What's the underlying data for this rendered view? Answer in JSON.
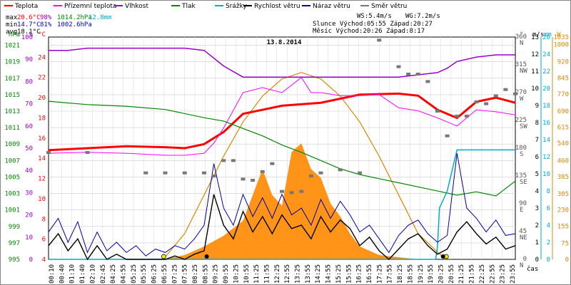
{
  "chart_data": {
    "type": "line",
    "title": "13.8.2014",
    "xlabel": "čas",
    "x_ticks": [
      "00:10",
      "00:40",
      "01:10",
      "01:40",
      "02:10",
      "02:45",
      "04:25",
      "04:55",
      "05:25",
      "05:55",
      "06:25",
      "06:55",
      "07:25",
      "07:55",
      "08:25",
      "08:55",
      "09:25",
      "09:55",
      "10:25",
      "10:55",
      "11:25",
      "11:55",
      "12:25",
      "12:55",
      "13:25",
      "13:55",
      "14:25",
      "14:55",
      "15:25",
      "15:55",
      "16:25",
      "16:55",
      "17:25",
      "17:55",
      "18:25",
      "18:55",
      "19:25",
      "19:55",
      "20:25",
      "20:55",
      "21:25",
      "21:55",
      "22:25",
      "22:55",
      "23:25",
      "23:55"
    ],
    "axes": {
      "hpa": {
        "label": "hPa",
        "ticks": [
          "995",
          "997",
          "999",
          "1001",
          "1003",
          "1005",
          "1007",
          "1009",
          "1011",
          "1013",
          "1015",
          "1017",
          "1019",
          "1021"
        ],
        "range": [
          995,
          1022
        ]
      },
      "pct": {
        "label": "%",
        "ticks": [
          "0",
          "10",
          "20",
          "30",
          "40",
          "50",
          "60",
          "70",
          "80",
          "90",
          "100"
        ],
        "range": [
          0,
          100
        ]
      },
      "temp": {
        "label": "°C",
        "ticks": [
          "4",
          "6",
          "8",
          "10",
          "12",
          "14",
          "16",
          "18",
          "20",
          "22",
          "24"
        ],
        "range": [
          4,
          26
        ]
      },
      "dir": {
        "label": "°",
        "ticks": [
          "0 N",
          "45 NE",
          "90 E",
          "135 SE",
          "180 S",
          "225 SW",
          "270 W",
          "315 NW",
          "360 N"
        ],
        "range": [
          0,
          360
        ]
      },
      "ms": {
        "label": "m/s",
        "ticks": [
          "0",
          "1",
          "2",
          "3",
          "4",
          "5",
          "6",
          "7",
          "8",
          "9",
          "10",
          "11",
          "12",
          "13"
        ],
        "range": [
          0,
          13
        ]
      },
      "mm": {
        "label": "mm",
        "ticks": [
          "0",
          "2",
          "4",
          "6",
          "8",
          "10",
          "12",
          "14",
          "16",
          "18",
          "20",
          "22",
          "24",
          "26"
        ],
        "range": [
          0,
          26
        ]
      },
      "wm2": {
        "label": "W",
        "ticks": [
          "0",
          "75",
          "155",
          "230",
          "305",
          "385",
          "460",
          "540",
          "615",
          "690",
          "770",
          "845",
          "920",
          "1000",
          "1035"
        ],
        "range": [
          0,
          1035
        ]
      }
    },
    "legend": [
      {
        "name": "Teplota",
        "color": "#ff0000"
      },
      {
        "name": "Přízemní teplota",
        "color": "#ff00ff"
      },
      {
        "name": "Vlhkost",
        "color": "#9900cc"
      },
      {
        "name": "Tlak",
        "color": "#008800"
      },
      {
        "name": "Srážky",
        "color": "#00aacc"
      },
      {
        "name": "Rychlost větru",
        "color": "#000000"
      },
      {
        "name": "Náraz větru",
        "color": "#0000aa"
      },
      {
        "name": "Směr větru",
        "color": "#777777"
      }
    ],
    "stats": {
      "max_label": "max",
      "max_temp": "20.6°C",
      "max_hum": "98%",
      "max_press": "1014.2hPa",
      "rain": "12.8mm",
      "min_label": "min",
      "min_temp": "14.7°C",
      "min_hum": "81%",
      "min_press": "1002.6hPa",
      "avg_label": "avg",
      "avg_temp": "18.1°C",
      "ws": "WS:5.4m/s",
      "wg": "WG:7.2m/s",
      "sun": "Slunce Východ:05:55  Západ:20:27",
      "moon": "Měsíc  Východ:20:26  Západ:8:17"
    },
    "series": [
      {
        "name": "Teplota",
        "color": "#ff0000",
        "x": [
          0,
          2,
          4,
          6,
          7,
          8,
          9,
          10,
          12,
          14,
          16,
          18,
          19,
          20,
          21,
          22,
          23,
          24
        ],
        "y": [
          14.8,
          15.0,
          15.2,
          15.1,
          15.0,
          15.4,
          16.6,
          18.4,
          19.2,
          19.5,
          20.3,
          20.4,
          20.2,
          18.8,
          18.0,
          19.6,
          20.0,
          19.5
        ]
      },
      {
        "name": "Přízemní teplota",
        "color": "#ff00ff",
        "x": [
          0,
          2,
          4,
          6,
          7,
          8,
          8.5,
          9,
          10,
          11,
          12,
          13,
          13.5,
          14,
          15,
          16,
          17,
          18,
          19,
          20,
          21,
          22,
          23,
          24
        ],
        "y": [
          14.5,
          14.6,
          14.5,
          14.3,
          14.3,
          14.5,
          15.5,
          17.0,
          20.5,
          21.0,
          20.5,
          22.0,
          20.5,
          20.5,
          20.2,
          20.2,
          20.3,
          19.0,
          18.7,
          18.0,
          17.2,
          18.8,
          18.6,
          18.3
        ]
      },
      {
        "name": "Vlhkost",
        "color": "#9900cc",
        "x": [
          0,
          1,
          2,
          3,
          4,
          6,
          7,
          8,
          9,
          10,
          11,
          12,
          14,
          16,
          17,
          18,
          19,
          20,
          20.5,
          21,
          22,
          23,
          24
        ],
        "y": [
          94,
          94,
          95,
          95,
          95,
          95,
          95,
          94,
          87,
          82,
          82,
          82,
          82,
          82,
          82,
          82,
          83,
          84,
          86,
          89,
          91,
          92,
          92
        ]
      },
      {
        "name": "Tlak",
        "color": "#008800",
        "x": [
          0,
          2,
          4,
          6,
          8,
          9,
          10,
          11,
          12,
          13,
          14,
          15,
          16,
          17,
          18,
          19,
          20,
          21,
          22,
          23,
          24
        ],
        "y": [
          1014.2,
          1013.8,
          1013.6,
          1013.2,
          1012.2,
          1011.8,
          1010.9,
          1010.0,
          1008.9,
          1008.0,
          1007.0,
          1006.0,
          1005.3,
          1004.8,
          1004.3,
          1003.8,
          1003.3,
          1002.8,
          1003.2,
          1002.7,
          1004.5
        ]
      },
      {
        "name": "Srážky",
        "color": "#00aacc",
        "x": [
          0,
          18,
          19.9,
          20.0,
          20.1,
          20.5,
          21,
          22,
          24
        ],
        "y": [
          0,
          0,
          0,
          1.5,
          6.0,
          8.0,
          12.8,
          12.8,
          12.8
        ]
      },
      {
        "name": "Rychlost větru",
        "color": "#000000",
        "x": [
          0,
          0.5,
          1,
          1.5,
          2,
          2.5,
          3,
          3.5,
          4,
          4.5,
          5,
          5.5,
          6,
          6.5,
          7,
          7.5,
          8,
          8.5,
          9,
          9.5,
          10,
          10.5,
          11,
          11.5,
          12,
          12.5,
          13,
          13.5,
          14,
          14.5,
          15,
          15.5,
          16,
          16.5,
          17,
          17.5,
          18,
          18.5,
          19,
          19.5,
          20,
          20.5,
          21,
          21.5,
          22,
          22.5,
          23,
          23.5,
          24
        ],
        "y": [
          0.8,
          1.5,
          0.5,
          1.2,
          0,
          0.8,
          0,
          0.3,
          0,
          0,
          0,
          0,
          0,
          0.2,
          0,
          0.3,
          0.5,
          3.8,
          2.0,
          1.2,
          2.8,
          1.6,
          2.5,
          1.5,
          2.6,
          1.8,
          2.0,
          1.2,
          2.5,
          1.6,
          2.3,
          1.8,
          0.8,
          1.3,
          0.5,
          0,
          0.6,
          1.2,
          1.5,
          0.8,
          0.3,
          0.6,
          1.6,
          2.2,
          1.5,
          0.9,
          1.3,
          0.6,
          0.8
        ]
      },
      {
        "name": "Náraz větru",
        "color": "#0000aa",
        "x": [
          0,
          0.5,
          1,
          1.5,
          2,
          2.5,
          3,
          3.5,
          4,
          4.5,
          5,
          5.5,
          6,
          6.5,
          7,
          7.5,
          8,
          8.5,
          9,
          9.5,
          10,
          10.5,
          11,
          11.5,
          12,
          12.5,
          13,
          13.5,
          14,
          14.5,
          15,
          15.5,
          16,
          16.5,
          17,
          17.5,
          18,
          18.5,
          19,
          19.5,
          20,
          20.5,
          21,
          21.5,
          22,
          22.5,
          23,
          23.5,
          24
        ],
        "y": [
          1.6,
          2.4,
          1.0,
          2.2,
          0.4,
          1.6,
          0.5,
          1.0,
          0.4,
          0.8,
          0.2,
          0.6,
          0.4,
          0.8,
          0.6,
          1.2,
          2.0,
          5.6,
          3.0,
          2.0,
          3.8,
          2.5,
          3.6,
          2.4,
          3.8,
          2.6,
          3.0,
          2.0,
          3.5,
          2.4,
          3.4,
          2.6,
          1.6,
          2.0,
          1.2,
          0.4,
          1.4,
          2.0,
          2.3,
          1.5,
          1.0,
          1.4,
          6.2,
          3.0,
          2.4,
          1.6,
          2.3,
          1.4,
          1.5
        ]
      },
      {
        "name": "Směr větru",
        "color": "#777777",
        "x": [
          0,
          2,
          3,
          4,
          5,
          6,
          7,
          8,
          8.5,
          9,
          9.5,
          10,
          10.5,
          11,
          11.5,
          12,
          12.5,
          13,
          13.5,
          14,
          15,
          16,
          17,
          18,
          18.5,
          19,
          19.5,
          20,
          20.5,
          21,
          21.5,
          22,
          22.5,
          23,
          23.5,
          24
        ],
        "y": [
          173,
          173,
          null,
          null,
          140,
          140,
          140,
          140,
          135,
          160,
          160,
          130,
          128,
          142,
          155,
          110,
          108,
          110,
          135,
          140,
          145,
          140,
          355,
          312,
          300,
          300,
          288,
          240,
          200,
          232,
          232,
          255,
          252,
          265,
          275,
          268
        ]
      }
    ],
    "solar": {
      "name": "Sluneční svit",
      "color": "#ff8800",
      "x": [
        5.9,
        7,
        8,
        9,
        10,
        10.5,
        11,
        11.5,
        12,
        12.5,
        13,
        13.5,
        14,
        14.5,
        15,
        15.5,
        16,
        17,
        18,
        19,
        20.5
      ],
      "y": [
        0,
        20,
        60,
        110,
        180,
        300,
        420,
        300,
        250,
        500,
        540,
        420,
        380,
        260,
        200,
        120,
        60,
        20,
        10,
        0,
        0
      ]
    },
    "clear_sky": {
      "color": "#dd8800",
      "x": [
        5.9,
        7,
        8,
        9,
        10,
        11,
        12,
        13,
        14,
        15,
        16,
        17,
        18,
        19,
        20.4
      ],
      "y": [
        0,
        120,
        300,
        480,
        640,
        760,
        840,
        870,
        840,
        760,
        640,
        480,
        300,
        120,
        0
      ]
    }
  }
}
